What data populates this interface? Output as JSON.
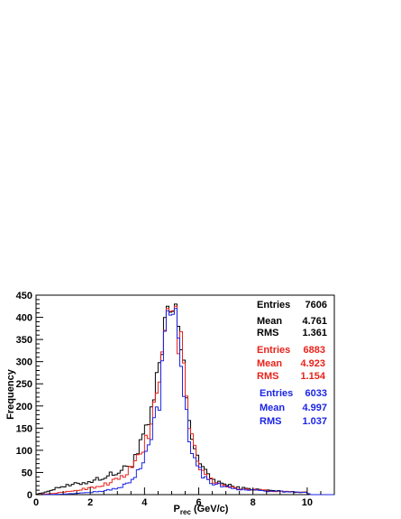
{
  "chart_data": {
    "type": "histogram",
    "title": "",
    "xlabel": "P_rec (GeV/c)",
    "xlabel_main": "P",
    "xlabel_sub": "rec",
    "xlabel_unit": " (GeV/c)",
    "ylabel": "Frequency",
    "xlim": [
      0,
      11
    ],
    "ylim": [
      0,
      450
    ],
    "x_ticks": [
      0,
      2,
      4,
      6,
      8,
      10
    ],
    "y_ticks": [
      0,
      50,
      100,
      150,
      200,
      250,
      300,
      350,
      400,
      450
    ],
    "bin_width": 0.1,
    "grid": false,
    "colors": {
      "black": "#000000",
      "red": "#e8221a",
      "blue": "#1b24e6"
    },
    "series": [
      {
        "color": "#000000",
        "stats": {
          "entries_label": "Entries",
          "entries": "7606",
          "mean_label": "Mean",
          "mean": "4.761",
          "rms_label": "RMS",
          "rms": "1.361"
        },
        "anchors": [
          [
            0.05,
            2
          ],
          [
            0.35,
            5
          ],
          [
            0.6,
            12
          ],
          [
            0.9,
            18
          ],
          [
            1.2,
            20
          ],
          [
            1.6,
            25
          ],
          [
            2.0,
            30
          ],
          [
            2.4,
            38
          ],
          [
            2.8,
            45
          ],
          [
            3.2,
            55
          ],
          [
            3.5,
            70
          ],
          [
            3.8,
            100
          ],
          [
            4.0,
            130
          ],
          [
            4.2,
            170
          ],
          [
            4.4,
            215
          ],
          [
            4.6,
            300
          ],
          [
            4.75,
            370
          ],
          [
            4.85,
            425
          ],
          [
            5.0,
            405
          ],
          [
            5.15,
            430
          ],
          [
            5.3,
            350
          ],
          [
            5.45,
            270
          ],
          [
            5.6,
            190
          ],
          [
            5.8,
            120
          ],
          [
            6.0,
            80
          ],
          [
            6.2,
            52
          ],
          [
            6.5,
            35
          ],
          [
            7.0,
            22
          ],
          [
            7.5,
            15
          ],
          [
            8.0,
            12
          ],
          [
            8.5,
            10
          ],
          [
            9.0,
            8
          ],
          [
            9.5,
            6
          ],
          [
            10.0,
            5
          ],
          [
            10.05,
            2
          ],
          [
            10.1,
            0
          ]
        ]
      },
      {
        "color": "#e8221a",
        "stats": {
          "entries_label": "Entries",
          "entries": "6883",
          "mean_label": "Mean",
          "mean": "4.923",
          "rms_label": "RMS",
          "rms": "1.154"
        },
        "anchors": [
          [
            0.05,
            0
          ],
          [
            0.5,
            2
          ],
          [
            1.0,
            5
          ],
          [
            1.5,
            10
          ],
          [
            2.0,
            15
          ],
          [
            2.5,
            22
          ],
          [
            3.0,
            35
          ],
          [
            3.3,
            45
          ],
          [
            3.6,
            65
          ],
          [
            3.9,
            100
          ],
          [
            4.1,
            130
          ],
          [
            4.3,
            175
          ],
          [
            4.5,
            230
          ],
          [
            4.65,
            300
          ],
          [
            4.75,
            365
          ],
          [
            4.85,
            420
          ],
          [
            5.0,
            410
          ],
          [
            5.15,
            425
          ],
          [
            5.3,
            345
          ],
          [
            5.45,
            260
          ],
          [
            5.6,
            180
          ],
          [
            5.8,
            110
          ],
          [
            6.0,
            70
          ],
          [
            6.2,
            45
          ],
          [
            6.5,
            30
          ],
          [
            7.0,
            20
          ],
          [
            7.5,
            14
          ],
          [
            8.0,
            11
          ],
          [
            8.5,
            9
          ],
          [
            9.0,
            7
          ],
          [
            9.5,
            6
          ],
          [
            10.0,
            5
          ],
          [
            10.05,
            2
          ],
          [
            10.1,
            0
          ]
        ]
      },
      {
        "color": "#1b24e6",
        "stats": {
          "entries_label": "Entries",
          "entries": "6033",
          "mean_label": "Mean",
          "mean": "4.997",
          "rms_label": "RMS",
          "rms": "1.037"
        },
        "anchors": [
          [
            0.05,
            0
          ],
          [
            1.0,
            1
          ],
          [
            1.5,
            3
          ],
          [
            2.0,
            5
          ],
          [
            2.5,
            8
          ],
          [
            3.0,
            15
          ],
          [
            3.3,
            22
          ],
          [
            3.6,
            35
          ],
          [
            3.9,
            65
          ],
          [
            4.1,
            100
          ],
          [
            4.3,
            140
          ],
          [
            4.5,
            200
          ],
          [
            4.65,
            280
          ],
          [
            4.75,
            350
          ],
          [
            4.85,
            415
          ],
          [
            5.0,
            400
          ],
          [
            5.15,
            420
          ],
          [
            5.3,
            330
          ],
          [
            5.45,
            240
          ],
          [
            5.6,
            160
          ],
          [
            5.8,
            95
          ],
          [
            6.0,
            60
          ],
          [
            6.2,
            40
          ],
          [
            6.5,
            27
          ],
          [
            7.0,
            18
          ],
          [
            7.5,
            12
          ],
          [
            8.0,
            10
          ],
          [
            8.5,
            8
          ],
          [
            9.0,
            7
          ],
          [
            9.5,
            6
          ],
          [
            10.0,
            5
          ],
          [
            10.05,
            2
          ],
          [
            10.1,
            0
          ]
        ]
      }
    ]
  }
}
